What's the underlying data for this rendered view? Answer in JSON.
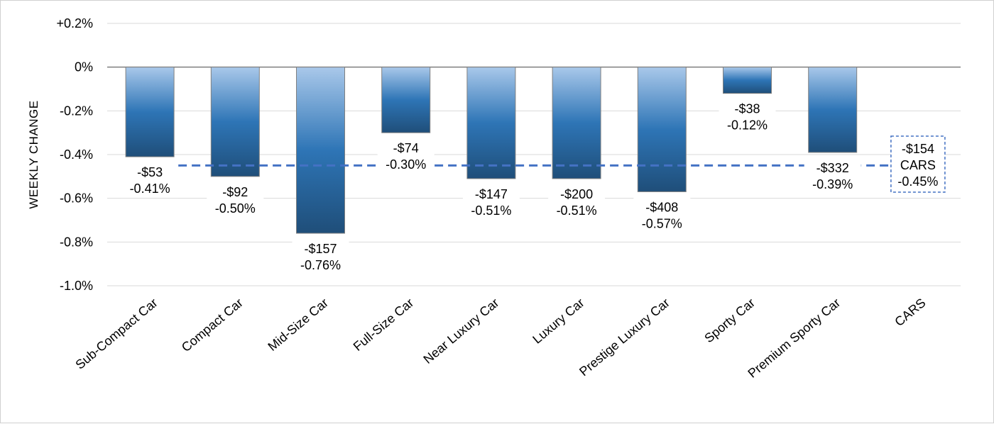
{
  "chart_data": {
    "type": "bar",
    "ylabel": "WEEKLY CHANGE",
    "xlabel": "",
    "ylim": [
      -1.0,
      0.2
    ],
    "yticks": [
      0.2,
      0,
      -0.2,
      -0.4,
      -0.6,
      -0.8,
      -1.0
    ],
    "ytick_labels": [
      "+0.2%",
      "0%",
      "-0.2%",
      "-0.4%",
      "-0.6%",
      "-0.8%",
      "-1.0%"
    ],
    "grid": true,
    "colors": {
      "bar_light": "#a9c8ea",
      "bar_mid": "#2e75b6",
      "bar_dark": "#1f4e79",
      "bar_border": "#808080",
      "avg_line": "#4472c4",
      "gridline": "#d9d9d9",
      "axis": "#7f7f7f"
    },
    "categories": [
      "Sub-Compact Car",
      "Compact Car",
      "Mid-Size Car",
      "Full-Size Car",
      "Near Luxury Car",
      "Luxury Car",
      "Prestige Luxury Car",
      "Sporty Car",
      "Premium Sporty Car",
      "CARS"
    ],
    "values": [
      -0.41,
      -0.5,
      -0.76,
      -0.3,
      -0.51,
      -0.51,
      -0.57,
      -0.12,
      -0.39,
      null
    ],
    "dollar_labels": [
      "-$53",
      "-$92",
      "-$157",
      "-$74",
      "-$147",
      "-$200",
      "-$408",
      "-$38",
      "-$332",
      null
    ],
    "pct_labels": [
      "-0.41%",
      "-0.50%",
      "-0.76%",
      "-0.30%",
      "-0.51%",
      "-0.51%",
      "-0.57%",
      "-0.12%",
      "-0.39%",
      null
    ],
    "average": {
      "value": -0.45,
      "dollar_label": "-$154",
      "name_label": "CARS",
      "pct_label": "-0.45%"
    }
  }
}
